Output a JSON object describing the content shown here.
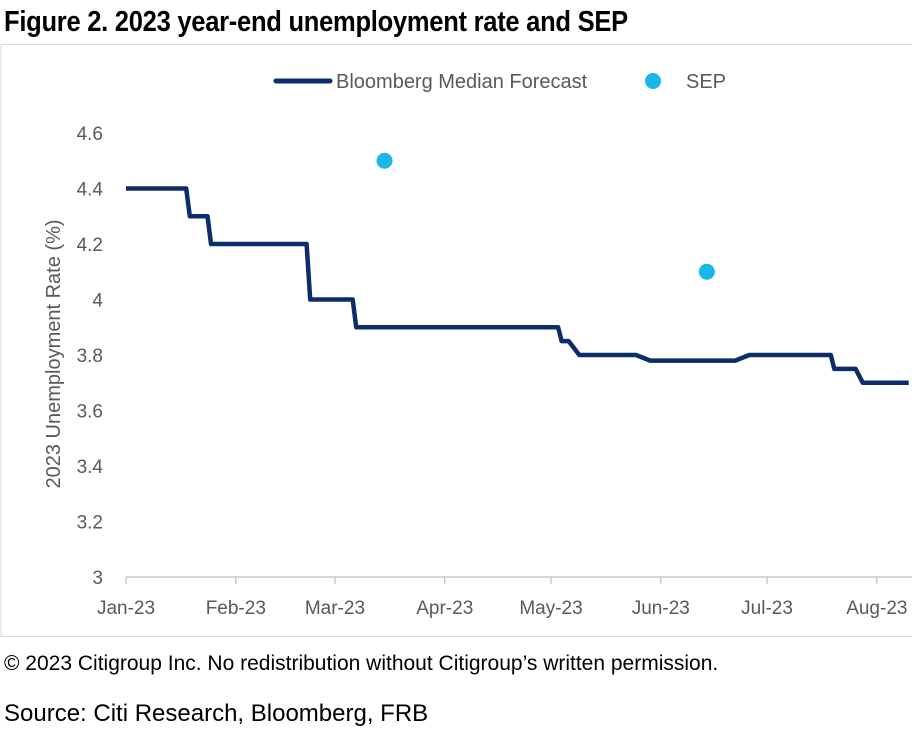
{
  "title": "Figure 2. 2023 year-end unemployment rate and SEP",
  "copyright": "© 2023 Citigroup Inc. No redistribution without Citigroup’s written permission.",
  "source": "Source: Citi Research, Bloomberg, FRB",
  "colors": {
    "forecast_line": "#0b2d6b",
    "sep_marker": "#1ab7ea",
    "frame": "#d9d9d9",
    "axis": "#bfbfbf",
    "text": "#595959"
  },
  "chart_data": {
    "type": "line",
    "ylabel": "2023 Unemployment Rate (%)",
    "xlabel": "",
    "ylim": [
      3,
      4.6
    ],
    "yticks": [
      "3",
      "3.2",
      "3.4",
      "3.6",
      "3.8",
      "4",
      "4.2",
      "4.4",
      "4.6"
    ],
    "yticks_values": [
      3,
      3.2,
      3.4,
      3.6,
      3.8,
      4,
      4.2,
      4.4,
      4.6
    ],
    "xlim": [
      "2023-01-01",
      "2023-08-10"
    ],
    "xticks": [
      "Jan-23",
      "Feb-23",
      "Mar-23",
      "Apr-23",
      "May-23",
      "Jun-23",
      "Jul-23",
      "Aug-23"
    ],
    "xticks_dates": [
      "2023-01-01",
      "2023-02-01",
      "2023-03-01",
      "2023-04-01",
      "2023-05-01",
      "2023-06-01",
      "2023-07-01",
      "2023-08-01"
    ],
    "grid": false,
    "legend": [
      "Bloomberg Median Forecast",
      "SEP"
    ],
    "legend_position": "top",
    "series": [
      {
        "name": "Bloomberg Median Forecast",
        "style": "step-line",
        "points": [
          [
            "2023-01-01",
            4.4
          ],
          [
            "2023-01-18",
            4.4
          ],
          [
            "2023-01-19",
            4.3
          ],
          [
            "2023-01-24",
            4.3
          ],
          [
            "2023-01-25",
            4.2
          ],
          [
            "2023-02-21",
            4.2
          ],
          [
            "2023-02-22",
            4.0
          ],
          [
            "2023-03-06",
            4.0
          ],
          [
            "2023-03-07",
            3.9
          ],
          [
            "2023-05-03",
            3.9
          ],
          [
            "2023-05-04",
            3.85
          ],
          [
            "2023-05-06",
            3.85
          ],
          [
            "2023-05-09",
            3.8
          ],
          [
            "2023-05-25",
            3.8
          ],
          [
            "2023-05-29",
            3.78
          ],
          [
            "2023-06-22",
            3.78
          ],
          [
            "2023-06-26",
            3.8
          ],
          [
            "2023-07-19",
            3.8
          ],
          [
            "2023-07-20",
            3.75
          ],
          [
            "2023-07-26",
            3.75
          ],
          [
            "2023-07-28",
            3.7
          ],
          [
            "2023-08-10",
            3.7
          ]
        ]
      },
      {
        "name": "SEP",
        "style": "scatter",
        "points": [
          [
            "2023-03-15",
            4.5
          ],
          [
            "2023-06-14",
            4.1
          ]
        ]
      }
    ]
  }
}
